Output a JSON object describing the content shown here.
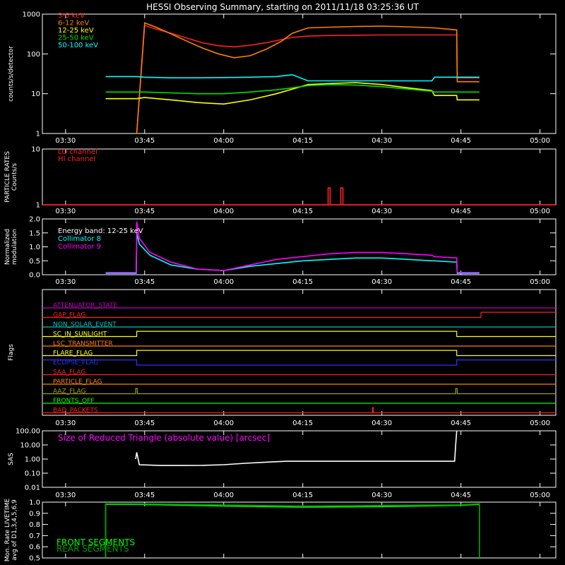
{
  "title": "HESSI Observing Summary, starting on 2011/11/18 03:25:36 UT",
  "time_ticks": [
    "03:30",
    "03:45",
    "04:00",
    "04:15",
    "04:30",
    "04:45",
    "05:00"
  ],
  "time_tick_minutes": [
    30,
    45,
    60,
    75,
    90,
    105,
    120
  ],
  "time_range_minutes": [
    25.6,
    123.0
  ],
  "colors": {
    "background": "#000000",
    "axes": "#ffffff",
    "band_3_6": "#ff2020",
    "band_6_12": "#ff8000",
    "band_12_25": "#ffff00",
    "band_25_50": "#00e000",
    "band_50_100": "#00ffff",
    "collimator_8": "#00ffff",
    "collimator_9": "#ff00ff",
    "particle": "#ff2020",
    "sas": "#ffffff",
    "livetime": "#00c000"
  },
  "chart_data": [
    {
      "type": "line",
      "id": "count-rates",
      "ylabel": "counts/s/detector",
      "yscale": "log",
      "ylim": [
        1,
        1000
      ],
      "ytick_labels": [
        "1",
        "10",
        "100",
        "1000"
      ],
      "ytick_values": [
        1,
        10,
        100,
        1000
      ],
      "legend_position": "top-left",
      "series": [
        {
          "name": "3-6 keV",
          "color": "#ff2020",
          "x": [
            43.5,
            45,
            47,
            50,
            53,
            56,
            59,
            62,
            65,
            68,
            71,
            73,
            76,
            80,
            85,
            90,
            95,
            100,
            104.2,
            104.3,
            108.5
          ],
          "y": [
            1,
            520,
            430,
            330,
            250,
            190,
            160,
            150,
            165,
            190,
            230,
            260,
            280,
            290,
            295,
            300,
            300,
            300,
            300,
            25,
            25
          ]
        },
        {
          "name": "6-12 keV",
          "color": "#ff8000",
          "x": [
            43.5,
            45,
            47,
            50,
            53,
            56,
            59,
            62,
            65,
            68,
            71,
            73,
            76,
            80,
            85,
            90,
            95,
            100,
            104.2,
            104.3,
            108.5
          ],
          "y": [
            1,
            600,
            480,
            320,
            210,
            140,
            100,
            80,
            90,
            130,
            210,
            330,
            450,
            470,
            490,
            500,
            480,
            450,
            400,
            20,
            20
          ]
        },
        {
          "name": "12-25 keV",
          "color": "#ffff00",
          "x": [
            37.6,
            43.5,
            45,
            50,
            55,
            60,
            65,
            70,
            73,
            76,
            80,
            85,
            90,
            95,
            99.5,
            100,
            104.2,
            104.3,
            108.5
          ],
          "y": [
            7.5,
            7.5,
            8,
            7,
            6,
            5.5,
            7,
            10,
            13,
            17,
            18,
            19,
            17,
            14,
            12,
            9,
            9,
            7,
            7
          ]
        },
        {
          "name": "25-50 keV",
          "color": "#00e000",
          "x": [
            37.6,
            43.5,
            45,
            50,
            55,
            60,
            65,
            70,
            73,
            76,
            80,
            85,
            90,
            95,
            99.5,
            100,
            104.2,
            104.3,
            108.5
          ],
          "y": [
            11,
            11,
            11,
            10.5,
            10,
            10,
            11,
            12.5,
            14,
            16,
            17,
            16.5,
            15,
            13,
            11.5,
            11,
            11,
            11,
            11
          ]
        },
        {
          "name": "50-100 keV",
          "color": "#00ffff",
          "x": [
            37.6,
            43.5,
            45,
            50,
            55,
            60,
            65,
            70,
            73,
            76,
            80,
            85,
            90,
            95,
            99.5,
            100,
            104.2,
            104.3,
            108.5
          ],
          "y": [
            27,
            27,
            26,
            25,
            25,
            25.5,
            26,
            27,
            30,
            21,
            21,
            21,
            21,
            21,
            21,
            26,
            26,
            26,
            26
          ]
        }
      ]
    },
    {
      "type": "line",
      "id": "particle-rates",
      "ylabel": "PARTICLE RATES Counts/s",
      "yscale": "log",
      "ylim": [
        1,
        10
      ],
      "ytick_labels": [
        "1",
        "10"
      ],
      "ytick_values": [
        1,
        10
      ],
      "legend_position": "top-left",
      "series": [
        {
          "name": "LO channel",
          "color": "#ff2020",
          "x": [
            25.6,
            123.0
          ],
          "y": [
            1,
            1
          ]
        },
        {
          "name": "HI channel",
          "color": "#ff2020",
          "x": [
            25.6,
            79.8,
            79.8,
            80.2,
            80.2,
            82.2,
            82.2,
            82.6,
            82.6,
            123.0
          ],
          "y": [
            1,
            1,
            2,
            2,
            1,
            1,
            2,
            2,
            1,
            1
          ]
        }
      ]
    },
    {
      "type": "line",
      "id": "modulation",
      "ylabel": "Normalized modulation",
      "ylim": [
        0,
        2
      ],
      "ytick_labels": [
        "0.0",
        "0.5",
        "1.0",
        "1.5",
        "2.0"
      ],
      "ytick_values": [
        0,
        0.5,
        1.0,
        1.5,
        2.0
      ],
      "annotation": "Energy band: 12-25 keV",
      "legend_position": "top-left",
      "series": [
        {
          "name": "Collimator 8",
          "color": "#00ffff",
          "x": [
            37.6,
            43.4,
            43.5,
            44,
            46,
            50,
            55,
            60,
            65,
            70,
            75,
            80,
            85,
            90,
            95,
            99.5,
            100,
            104.2,
            104.3,
            108.5
          ],
          "y": [
            0.05,
            0.05,
            1.5,
            1.1,
            0.7,
            0.35,
            0.2,
            0.15,
            0.3,
            0.4,
            0.5,
            0.55,
            0.6,
            0.6,
            0.55,
            0.5,
            0.5,
            0.45,
            0.05,
            0.05
          ]
        },
        {
          "name": "Collimator 9",
          "color": "#ff00ff",
          "x": [
            37.6,
            43.4,
            43.5,
            44,
            46,
            50,
            55,
            60,
            65,
            70,
            75,
            80,
            85,
            90,
            95,
            99.5,
            100,
            104.2,
            104.3,
            108.5
          ],
          "y": [
            0.08,
            0.08,
            1.9,
            1.3,
            0.8,
            0.45,
            0.2,
            0.15,
            0.35,
            0.55,
            0.65,
            0.75,
            0.8,
            0.8,
            0.75,
            0.7,
            0.65,
            0.6,
            0.08,
            0.08
          ]
        }
      ]
    },
    {
      "type": "line",
      "id": "flags",
      "ylabel": "Flags",
      "series": [
        {
          "name": "ATTENUATOR_STATE",
          "color": "#c000c0",
          "x": [
            25.6,
            123.0
          ],
          "y": [
            0,
            0
          ]
        },
        {
          "name": "GAP_FLAG",
          "color": "#ff2020",
          "x": [
            25.6,
            108.8,
            108.8,
            123.0
          ],
          "y": [
            0,
            0,
            1,
            1
          ]
        },
        {
          "name": "NON_SOLAR_EVENT",
          "color": "#00c0c0",
          "x": [
            25.6,
            123.0
          ],
          "y": [
            0,
            0
          ]
        },
        {
          "name": "SC_IN_SUNLIGHT",
          "color": "#ffff00",
          "x": [
            25.6,
            43.5,
            43.5,
            104.2,
            104.2,
            123.0
          ],
          "y": [
            0,
            0,
            1,
            1,
            0,
            0
          ]
        },
        {
          "name": "LSC_TRANSMITTER",
          "color": "#ff8000",
          "x": [
            25.6,
            123.0
          ],
          "y": [
            0,
            0
          ]
        },
        {
          "name": "FLARE_FLAG",
          "color": "#ffff00",
          "x": [
            25.6,
            43.5,
            43.5,
            104.2,
            104.2,
            123.0
          ],
          "y": [
            0,
            0,
            1,
            1,
            0,
            0
          ]
        },
        {
          "name": "ECLIPSE_FLAG",
          "color": "#3030ff",
          "x": [
            25.6,
            43.5,
            43.5,
            104.2,
            104.2,
            123.0
          ],
          "y": [
            1,
            1,
            0,
            0,
            1,
            1
          ]
        },
        {
          "name": "SAA_FLAG",
          "color": "#ff2020",
          "x": [
            25.6,
            123.0
          ],
          "y": [
            0,
            0
          ]
        },
        {
          "name": "PARTICLE_FLAG",
          "color": "#ff8000",
          "x": [
            25.6,
            123.0
          ],
          "y": [
            0,
            0
          ]
        },
        {
          "name": "AAZ_FLAG",
          "color": "#a0a000",
          "x": [
            25.6,
            43.3,
            43.3,
            43.6,
            43.6,
            104.0,
            104.0,
            104.3,
            104.3,
            123.0
          ],
          "y": [
            0,
            0,
            1,
            1,
            0,
            0,
            1,
            1,
            0,
            0
          ]
        },
        {
          "name": "FRONTS_OFF",
          "color": "#00ff00",
          "x": [
            25.6,
            123.0
          ],
          "y": [
            0,
            0
          ]
        },
        {
          "name": "BAD_PACKETS",
          "color": "#ff2020",
          "x": [
            25.6,
            88.2,
            88.2,
            88.4,
            88.4,
            123.0
          ],
          "y": [
            0,
            0,
            1,
            1,
            0,
            0
          ]
        }
      ]
    },
    {
      "type": "line",
      "id": "sas",
      "ylabel": "SAS",
      "title": "Size of Reduced Triangle (absolute value) [arcsec]",
      "yscale": "log",
      "ylim": [
        0.01,
        100
      ],
      "ytick_labels": [
        "0.01",
        "0.10",
        "1.00",
        "10.00",
        "100.00"
      ],
      "ytick_values": [
        0.01,
        0.1,
        1,
        10,
        100
      ],
      "series": [
        {
          "name": "",
          "color": "#ffffff",
          "x": [
            43.3,
            43.5,
            44,
            48,
            52,
            56,
            60,
            64,
            68,
            72,
            80,
            90,
            100,
            103.8,
            104.0,
            104.2
          ],
          "y": [
            1.0,
            3.0,
            0.4,
            0.35,
            0.35,
            0.36,
            0.4,
            0.5,
            0.6,
            0.7,
            0.7,
            0.7,
            0.7,
            0.7,
            10,
            100
          ]
        }
      ]
    },
    {
      "type": "line",
      "id": "livetime",
      "ylabel": "Mon. Rate LIVETIME avg of D1,3,4,5,6,9",
      "ylim": [
        0.5,
        1.0
      ],
      "ytick_labels": [
        "0.5",
        "0.6",
        "0.7",
        "0.8",
        "0.9",
        "1.0"
      ],
      "ytick_values": [
        0.5,
        0.6,
        0.7,
        0.8,
        0.9,
        1.0
      ],
      "legend_position": "bottom-left",
      "series": [
        {
          "name": "FRONT SEGMENTS",
          "color": "#00ff00",
          "x": [
            37.6,
            37.6,
            43.5,
            60,
            75,
            90,
            104.2,
            108.5,
            108.5
          ],
          "y": [
            0.5,
            0.98,
            0.98,
            0.965,
            0.955,
            0.96,
            0.97,
            0.98,
            0.5
          ]
        },
        {
          "name": "REAR SEGMENTS",
          "color": "#00a000",
          "x": [
            37.6,
            37.6,
            43.5,
            60,
            75,
            90,
            104.2,
            108.5,
            108.5
          ],
          "y": [
            0.5,
            0.985,
            0.985,
            0.975,
            0.965,
            0.97,
            0.975,
            0.985,
            0.5
          ]
        }
      ]
    }
  ]
}
